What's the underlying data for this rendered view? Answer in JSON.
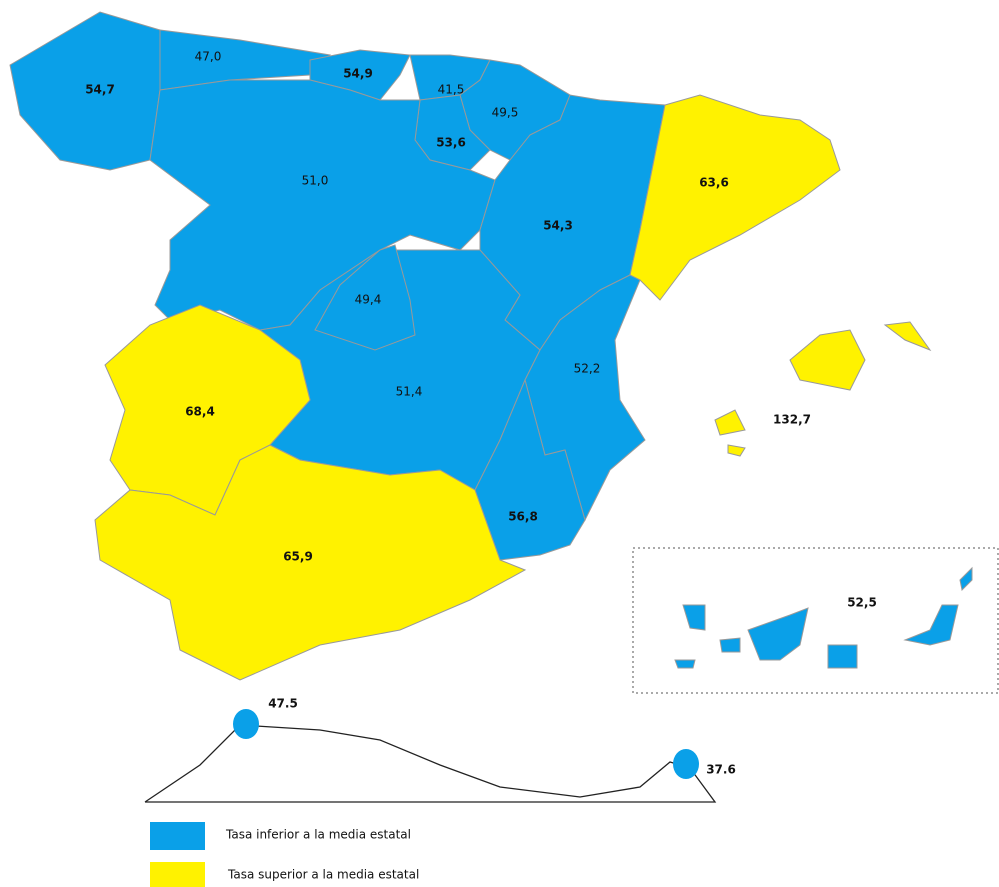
{
  "map": {
    "regions": [
      {
        "label": "54,7",
        "category": 0
      },
      {
        "label": "47,0",
        "category": 0
      },
      {
        "label": "54,9",
        "category": 0
      },
      {
        "label": "41,5",
        "category": 0
      },
      {
        "label": "49,5",
        "category": 0
      },
      {
        "label": "53,6",
        "category": 0
      },
      {
        "label": "51,0",
        "category": 0
      },
      {
        "label": "54,3",
        "category": 0
      },
      {
        "label": "63,6",
        "category": 1
      },
      {
        "label": "51,4",
        "category": 0
      },
      {
        "label": "49,4",
        "category": 0
      },
      {
        "label": "52,2",
        "category": 0
      },
      {
        "label": "56,8",
        "category": 0
      },
      {
        "label": "68,4",
        "category": 1
      },
      {
        "label": "65,9",
        "category": 1
      },
      {
        "label": "132,7",
        "category": 1
      },
      {
        "label": "52,5",
        "category": 0
      },
      {
        "label": "47.5",
        "category": 0
      },
      {
        "label": "37.6",
        "category": 0
      }
    ],
    "legend": [
      {
        "label": "Tasa inferior a la media estatal",
        "color": "#0aa0e8"
      },
      {
        "label": "Tasa superior a la media estatal",
        "color": "#fff200"
      }
    ]
  }
}
